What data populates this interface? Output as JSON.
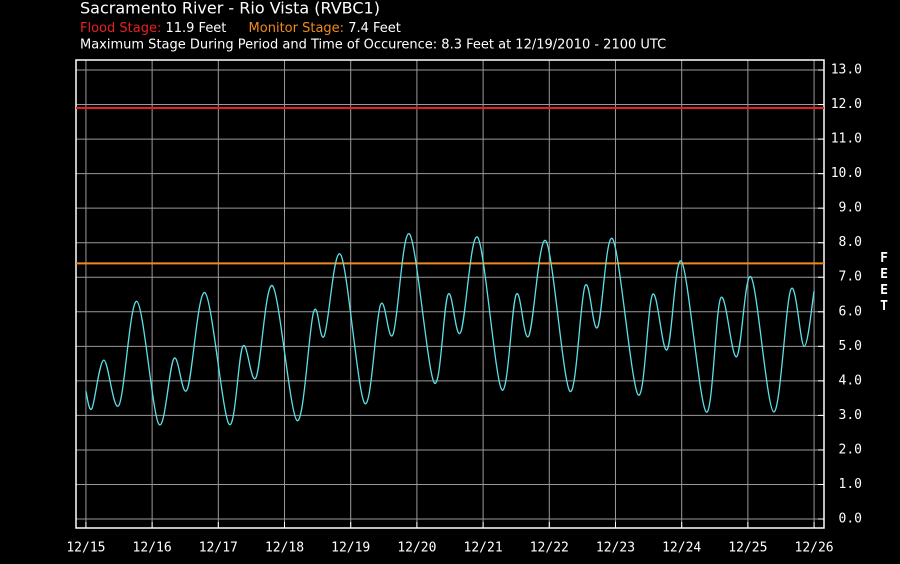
{
  "chart_data": {
    "type": "line",
    "title": "Sacramento River - Rio Vista (RVBC1)",
    "annotation": "Maximum Stage During Period and Time of Occurence: 8.3 Feet at 12/19/2010 - 2100 UTC",
    "y_label": "FEET",
    "stage_lines": [
      {
        "name": "Flood Stage:",
        "value": 11.9,
        "value_label": "11.9 Feet",
        "color": "#e8201e"
      },
      {
        "name": "Monitor Stage:",
        "value": 7.4,
        "value_label": "7.4 Feet",
        "color": "#f08a1c"
      }
    ],
    "series": [
      {
        "color": "#5ce0e6",
        "x": [
          15.0,
          15.09,
          15.27,
          15.5,
          15.77,
          16.1,
          16.33,
          16.53,
          16.8,
          17.16,
          17.37,
          17.57,
          17.82,
          18.19,
          18.44,
          18.6,
          18.85,
          19.21,
          19.45,
          19.64,
          19.89,
          20.26,
          20.47,
          20.66,
          20.92,
          21.28,
          21.5,
          21.69,
          21.95,
          22.31,
          22.54,
          22.73,
          22.96,
          23.34,
          23.56,
          23.78,
          24.0,
          24.37,
          24.59,
          24.83,
          25.05,
          25.39,
          25.65,
          25.85,
          26.0
        ],
        "values": [
          3.7,
          3.2,
          4.6,
          3.3,
          6.3,
          2.75,
          4.65,
          3.75,
          6.55,
          2.75,
          5.0,
          4.1,
          6.75,
          2.85,
          6.0,
          5.3,
          7.65,
          3.35,
          6.2,
          5.35,
          8.25,
          3.95,
          6.5,
          5.4,
          8.15,
          3.75,
          6.5,
          5.3,
          8.05,
          3.7,
          6.75,
          5.55,
          8.1,
          3.6,
          6.5,
          4.9,
          7.45,
          3.1,
          6.4,
          4.7,
          7.0,
          3.1,
          6.65,
          5.0,
          6.6
        ]
      }
    ],
    "xlim": [
      14.85,
      26.15
    ],
    "xticks": [
      {
        "value": 15,
        "label": "12/15"
      },
      {
        "value": 16,
        "label": "12/16"
      },
      {
        "value": 17,
        "label": "12/17"
      },
      {
        "value": 18,
        "label": "12/18"
      },
      {
        "value": 19,
        "label": "12/19"
      },
      {
        "value": 20,
        "label": "12/20"
      },
      {
        "value": 21,
        "label": "12/21"
      },
      {
        "value": 22,
        "label": "12/22"
      },
      {
        "value": 23,
        "label": "12/23"
      },
      {
        "value": 24,
        "label": "12/24"
      },
      {
        "value": 25,
        "label": "12/25"
      },
      {
        "value": 26,
        "label": "12/26"
      }
    ],
    "ylim": [
      -0.26,
      13.29
    ],
    "yticks": [
      {
        "value": 0,
        "label": "0.0"
      },
      {
        "value": 1,
        "label": "1.0"
      },
      {
        "value": 2,
        "label": "2.0"
      },
      {
        "value": 3,
        "label": "3.0"
      },
      {
        "value": 4,
        "label": "4.0"
      },
      {
        "value": 5,
        "label": "5.0"
      },
      {
        "value": 6,
        "label": "6.0"
      },
      {
        "value": 7,
        "label": "7.0"
      },
      {
        "value": 8,
        "label": "8.0"
      },
      {
        "value": 9,
        "label": "9.0"
      },
      {
        "value": 10,
        "label": "10.0"
      },
      {
        "value": 11,
        "label": "11.0"
      },
      {
        "value": 12,
        "label": "12.0"
      },
      {
        "value": 13,
        "label": "13.0"
      }
    ],
    "grid": true
  }
}
